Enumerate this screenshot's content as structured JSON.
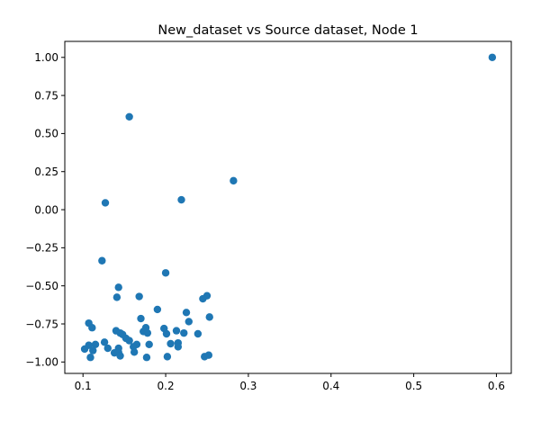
{
  "chart_data": {
    "type": "scatter",
    "title": "New_dataset vs Source dataset, Node 1",
    "xlabel": "",
    "ylabel": "",
    "xlim": [
      0.078,
      0.618
    ],
    "ylim": [
      -1.075,
      1.105
    ],
    "xticks": [
      0.1,
      0.2,
      0.3,
      0.4,
      0.5,
      0.6
    ],
    "xtick_labels": [
      "0.1",
      "0.2",
      "0.3",
      "0.4",
      "0.5",
      "0.6"
    ],
    "yticks": [
      -1.0,
      -0.75,
      -0.5,
      -0.25,
      0.0,
      0.25,
      0.5,
      0.75,
      1.0
    ],
    "ytick_labels": [
      "−1.00",
      "−0.75",
      "−0.50",
      "−0.25",
      "0.00",
      "0.25",
      "0.50",
      "0.75",
      "1.00"
    ],
    "grid": false,
    "marker_color": "#1f77b4",
    "series": [
      {
        "points": [
          [
            0.595,
            1.0
          ],
          [
            0.156,
            0.61
          ],
          [
            0.282,
            0.19
          ],
          [
            0.219,
            0.065
          ],
          [
            0.127,
            0.045
          ],
          [
            0.123,
            -0.335
          ],
          [
            0.2,
            -0.415
          ],
          [
            0.143,
            -0.51
          ],
          [
            0.141,
            -0.575
          ],
          [
            0.168,
            -0.57
          ],
          [
            0.19,
            -0.655
          ],
          [
            0.25,
            -0.565
          ],
          [
            0.245,
            -0.585
          ],
          [
            0.225,
            -0.675
          ],
          [
            0.253,
            -0.705
          ],
          [
            0.17,
            -0.715
          ],
          [
            0.228,
            -0.735
          ],
          [
            0.107,
            -0.745
          ],
          [
            0.111,
            -0.775
          ],
          [
            0.198,
            -0.78
          ],
          [
            0.176,
            -0.775
          ],
          [
            0.213,
            -0.795
          ],
          [
            0.173,
            -0.8
          ],
          [
            0.14,
            -0.795
          ],
          [
            0.145,
            -0.81
          ],
          [
            0.148,
            -0.82
          ],
          [
            0.178,
            -0.81
          ],
          [
            0.201,
            -0.815
          ],
          [
            0.222,
            -0.81
          ],
          [
            0.239,
            -0.815
          ],
          [
            0.152,
            -0.845
          ],
          [
            0.156,
            -0.86
          ],
          [
            0.126,
            -0.87
          ],
          [
            0.206,
            -0.88
          ],
          [
            0.215,
            -0.875
          ],
          [
            0.18,
            -0.885
          ],
          [
            0.165,
            -0.885
          ],
          [
            0.115,
            -0.885
          ],
          [
            0.107,
            -0.89
          ],
          [
            0.161,
            -0.9
          ],
          [
            0.143,
            -0.91
          ],
          [
            0.13,
            -0.91
          ],
          [
            0.215,
            -0.9
          ],
          [
            0.102,
            -0.915
          ],
          [
            0.112,
            -0.925
          ],
          [
            0.138,
            -0.94
          ],
          [
            0.162,
            -0.935
          ],
          [
            0.143,
            -0.935
          ],
          [
            0.145,
            -0.96
          ],
          [
            0.177,
            -0.97
          ],
          [
            0.109,
            -0.97
          ],
          [
            0.202,
            -0.965
          ],
          [
            0.252,
            -0.955
          ],
          [
            0.247,
            -0.965
          ]
        ]
      }
    ]
  }
}
